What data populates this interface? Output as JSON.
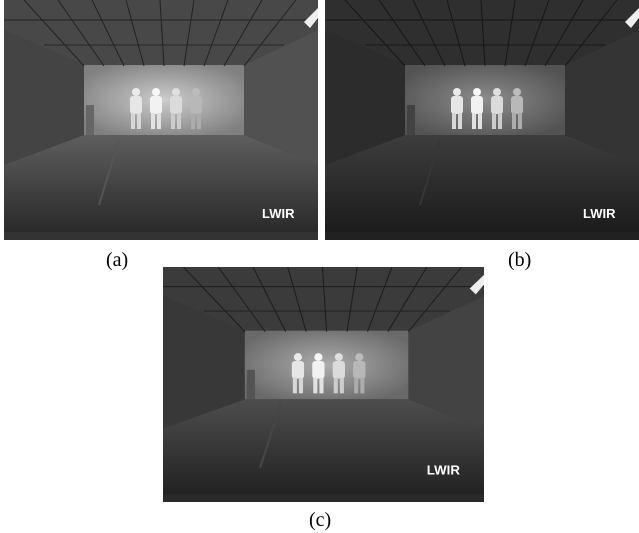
{
  "panels": [
    {
      "overlay": "LWIR",
      "caption": "(a)"
    },
    {
      "overlay": "LWIR",
      "caption": "(b)"
    },
    {
      "overlay": "LWIR",
      "caption": "(c)"
    }
  ]
}
